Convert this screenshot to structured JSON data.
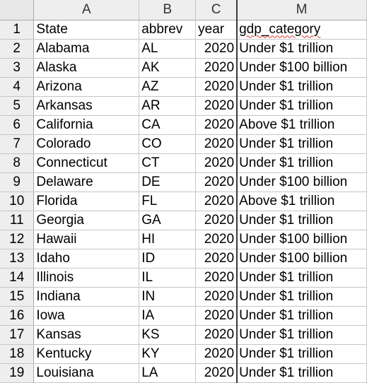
{
  "columns": [
    {
      "id": "corner",
      "label": ""
    },
    {
      "id": "A",
      "label": "A"
    },
    {
      "id": "B",
      "label": "B"
    },
    {
      "id": "C",
      "label": "C"
    },
    {
      "id": "M",
      "label": "M"
    }
  ],
  "header_row": {
    "num": "1",
    "state": "State",
    "abbrev": "abbrev",
    "year": "year",
    "gdp": "gdp_category"
  },
  "rows": [
    {
      "num": "2",
      "state": "Alabama",
      "abbrev": "AL",
      "year": "2020",
      "gdp": "Under $1 trillion"
    },
    {
      "num": "3",
      "state": "Alaska",
      "abbrev": "AK",
      "year": "2020",
      "gdp": "Under $100 billion"
    },
    {
      "num": "4",
      "state": "Arizona",
      "abbrev": "AZ",
      "year": "2020",
      "gdp": "Under $1 trillion"
    },
    {
      "num": "5",
      "state": "Arkansas",
      "abbrev": "AR",
      "year": "2020",
      "gdp": "Under $1 trillion"
    },
    {
      "num": "6",
      "state": "California",
      "abbrev": "CA",
      "year": "2020",
      "gdp": "Above $1 trillion"
    },
    {
      "num": "7",
      "state": "Colorado",
      "abbrev": "CO",
      "year": "2020",
      "gdp": "Under $1 trillion"
    },
    {
      "num": "8",
      "state": "Connecticut",
      "abbrev": "CT",
      "year": "2020",
      "gdp": "Under $1 trillion"
    },
    {
      "num": "9",
      "state": "Delaware",
      "abbrev": "DE",
      "year": "2020",
      "gdp": "Under $100 billion"
    },
    {
      "num": "10",
      "state": "Florida",
      "abbrev": "FL",
      "year": "2020",
      "gdp": "Above $1 trillion"
    },
    {
      "num": "11",
      "state": "Georgia",
      "abbrev": "GA",
      "year": "2020",
      "gdp": "Under $1 trillion"
    },
    {
      "num": "12",
      "state": "Hawaii",
      "abbrev": "HI",
      "year": "2020",
      "gdp": "Under $100 billion"
    },
    {
      "num": "13",
      "state": "Idaho",
      "abbrev": "ID",
      "year": "2020",
      "gdp": "Under $100 billion"
    },
    {
      "num": "14",
      "state": "Illinois",
      "abbrev": "IL",
      "year": "2020",
      "gdp": "Under $1 trillion"
    },
    {
      "num": "15",
      "state": "Indiana",
      "abbrev": "IN",
      "year": "2020",
      "gdp": "Under $1 trillion"
    },
    {
      "num": "16",
      "state": "Iowa",
      "abbrev": "IA",
      "year": "2020",
      "gdp": "Under $1 trillion"
    },
    {
      "num": "17",
      "state": "Kansas",
      "abbrev": "KS",
      "year": "2020",
      "gdp": "Under $1 trillion"
    },
    {
      "num": "18",
      "state": "Kentucky",
      "abbrev": "KY",
      "year": "2020",
      "gdp": "Under $1 trillion"
    },
    {
      "num": "19",
      "state": "Louisiana",
      "abbrev": "LA",
      "year": "2020",
      "gdp": "Under $1 trillion"
    }
  ],
  "colors": {
    "grid": "#c6c6c6",
    "header_bg": "#eeeeee",
    "freeze_line": "#3a3a3a",
    "spell_underline": "#d9322b"
  }
}
